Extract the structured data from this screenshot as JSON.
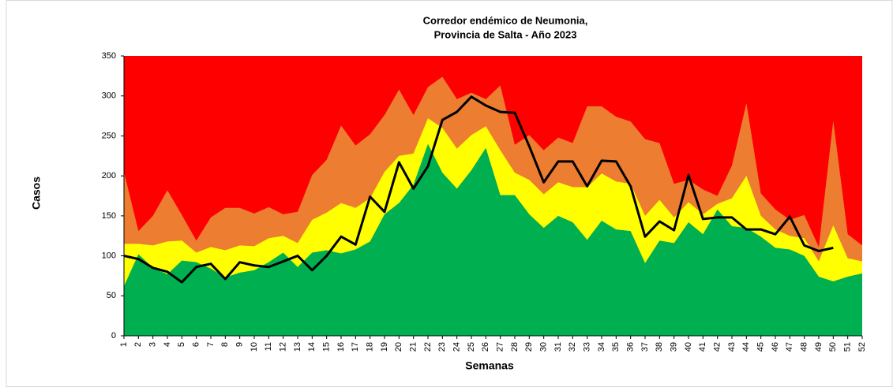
{
  "chart_data": {
    "type": "area",
    "title": [
      "Corredor endémico de Neumonia,",
      "Provincia de Salta - Año 2023"
    ],
    "x_label": "Semanas",
    "y_label": "Casos",
    "categories": [
      "1",
      "2",
      "3",
      "4",
      "5",
      "6",
      "7",
      "8",
      "9",
      "10",
      "11",
      "12",
      "13",
      "14",
      "15",
      "16",
      "17",
      "18",
      "19",
      "20",
      "21",
      "22",
      "23",
      "24",
      "25",
      "26",
      "27",
      "28",
      "29",
      "30",
      "31",
      "32",
      "33",
      "34",
      "35",
      "36",
      "37",
      "38",
      "39",
      "40",
      "41",
      "42",
      "43",
      "44",
      "45",
      "46",
      "47",
      "48",
      "49",
      "50",
      "51",
      "52"
    ],
    "ylim": [
      0,
      350
    ],
    "yticks": [
      0,
      50,
      100,
      150,
      200,
      250,
      300,
      350
    ],
    "plot_color": "#ff0000",
    "series": [
      {
        "type": "area",
        "color": "#ed7d31",
        "values": [
          205,
          131,
          150,
          182,
          151,
          119,
          148,
          160,
          160,
          153,
          161,
          152,
          155,
          201,
          220,
          263,
          238,
          252,
          276,
          308,
          276,
          311,
          324,
          296,
          304,
          296,
          313,
          239,
          251,
          232,
          248,
          241,
          287,
          287,
          274,
          268,
          246,
          241,
          190,
          195,
          183,
          175,
          213,
          291,
          178,
          158,
          145,
          151,
          111,
          269,
          127,
          113
        ]
      },
      {
        "type": "area",
        "color": "#ffff00",
        "values": [
          115,
          115,
          113,
          118,
          119,
          104,
          111,
          107,
          113,
          112,
          122,
          125,
          116,
          145,
          154,
          166,
          160,
          172,
          205,
          225,
          228,
          272,
          260,
          234,
          251,
          262,
          232,
          204,
          195,
          177,
          192,
          186,
          186,
          203,
          193,
          190,
          150,
          170,
          148,
          167,
          152,
          165,
          172,
          200,
          150,
          133,
          125,
          122,
          93,
          138,
          97,
          93
        ]
      },
      {
        "type": "area",
        "color": "#00b050",
        "values": [
          62,
          102,
          85,
          77,
          94,
          92,
          84,
          73,
          79,
          82,
          92,
          104,
          86,
          104,
          107,
          103,
          108,
          118,
          152,
          166,
          189,
          240,
          204,
          184,
          207,
          235,
          176,
          176,
          152,
          135,
          150,
          142,
          120,
          144,
          133,
          131,
          91,
          119,
          116,
          142,
          127,
          158,
          137,
          135,
          124,
          110,
          108,
          100,
          74,
          68,
          74,
          78
        ]
      },
      {
        "type": "line",
        "color": "#000000",
        "values": [
          100,
          96,
          85,
          80,
          67,
          86,
          90,
          71,
          92,
          88,
          86,
          93,
          100,
          82,
          100,
          124,
          114,
          174,
          155,
          217,
          184,
          212,
          270,
          280,
          299,
          288,
          280,
          279,
          237,
          192,
          218,
          218,
          187,
          219,
          218,
          187,
          124,
          143,
          132,
          201,
          146,
          148,
          148,
          133,
          133,
          127,
          149,
          113,
          106,
          110,
          null,
          null
        ]
      }
    ]
  }
}
